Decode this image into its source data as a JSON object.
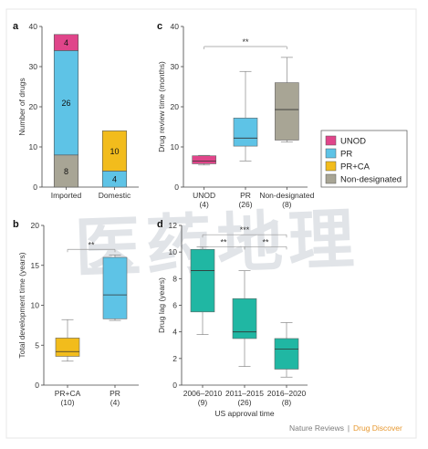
{
  "colors": {
    "unod": "#e0458a",
    "pr": "#5ec3e6",
    "prca": "#f2bc1c",
    "nondes": "#a8a595",
    "teal": "#20b7a3",
    "axis": "#444444",
    "frame": "#e7e7e7",
    "sig": "#999999",
    "watermark": "#c9cdd6",
    "publisher_gray": "#7d7d7d",
    "publisher_orange": "#e7982f"
  },
  "watermark": "医药地理",
  "footer": {
    "publisher": "Nature Reviews",
    "separator": "|",
    "journal": "Drug Discover"
  },
  "legend": {
    "items": [
      {
        "label": "UNOD",
        "color_key": "unod"
      },
      {
        "label": "PR",
        "color_key": "pr"
      },
      {
        "label": "PR+CA",
        "color_key": "prca"
      },
      {
        "label": "Non-designated",
        "color_key": "nondes"
      }
    ]
  },
  "chart_data": [
    {
      "panel": "a",
      "type": "bar",
      "stacked": true,
      "ylabel": "Number of drugs",
      "ylim": [
        0,
        40
      ],
      "yticks": [
        0,
        10,
        20,
        30,
        40
      ],
      "categories": [
        "Imported",
        "Domestic"
      ],
      "series": [
        {
          "name": "Non-designated",
          "color_key": "nondes",
          "values": [
            8,
            0
          ],
          "labels": [
            "8",
            ""
          ]
        },
        {
          "name": "PR",
          "color_key": "pr",
          "values": [
            26,
            4
          ],
          "labels": [
            "26",
            "4"
          ]
        },
        {
          "name": "UNOD",
          "color_key": "unod",
          "values": [
            4,
            0
          ],
          "labels": [
            "4",
            ""
          ]
        },
        {
          "name": "PR+CA",
          "color_key": "prca",
          "values": [
            0,
            10
          ],
          "labels": [
            "",
            "10"
          ]
        }
      ]
    },
    {
      "panel": "b",
      "type": "box",
      "ylabel": "Total development time (years)",
      "ylim": [
        0,
        20
      ],
      "yticks": [
        0,
        5,
        10,
        15,
        20
      ],
      "categories": [
        "PR+CA",
        "PR"
      ],
      "category_counts": [
        "(10)",
        "(4)"
      ],
      "boxes": [
        {
          "color_key": "prca",
          "min": 3.0,
          "q1": 3.6,
          "median": 4.2,
          "q3": 5.9,
          "max": 8.2
        },
        {
          "color_key": "pr",
          "min": 8.1,
          "q1": 8.3,
          "median": 11.3,
          "q3": 16.0,
          "max": 16.3
        }
      ],
      "significance": [
        {
          "from": 0,
          "to": 1,
          "level": 17,
          "label": "**"
        }
      ]
    },
    {
      "panel": "c",
      "type": "box",
      "ylabel": "Drug review time (months)",
      "ylim": [
        0,
        40
      ],
      "yticks": [
        0,
        10,
        20,
        30,
        40
      ],
      "categories": [
        "UNOD",
        "PR",
        "Non-designated"
      ],
      "category_counts": [
        "(4)",
        "(26)",
        "(8)"
      ],
      "boxes": [
        {
          "color_key": "unod",
          "min": 5.5,
          "q1": 5.8,
          "median": 6.5,
          "q3": 7.8,
          "max": 7.9
        },
        {
          "color_key": "pr",
          "min": 6.5,
          "q1": 10.2,
          "median": 12.2,
          "q3": 17.2,
          "max": 28.8
        },
        {
          "color_key": "nondes",
          "min": 11.2,
          "q1": 11.7,
          "median": 19.3,
          "q3": 26.0,
          "max": 32.3
        }
      ],
      "significance": [
        {
          "from": 0,
          "to": 2,
          "level": 35,
          "label": "**"
        }
      ]
    },
    {
      "panel": "d",
      "type": "box",
      "xlabel": "US approval time",
      "ylabel": "Drug lag (years)",
      "ylim": [
        0,
        12
      ],
      "yticks": [
        0,
        2,
        4,
        6,
        8,
        10,
        12
      ],
      "categories": [
        "2006–2010",
        "2011–2015",
        "2016–2020"
      ],
      "category_counts": [
        "(9)",
        "(26)",
        "(8)"
      ],
      "boxes": [
        {
          "color_key": "teal",
          "min": 3.8,
          "q1": 5.5,
          "median": 8.6,
          "q3": 10.2,
          "max": 10.4
        },
        {
          "color_key": "teal",
          "min": 1.4,
          "q1": 3.5,
          "median": 4.0,
          "q3": 6.5,
          "max": 8.6
        },
        {
          "color_key": "teal",
          "min": 0.6,
          "q1": 1.2,
          "median": 2.7,
          "q3": 3.5,
          "max": 4.7
        }
      ],
      "significance": [
        {
          "from": 0,
          "to": 1,
          "level": 10.4,
          "label": "**"
        },
        {
          "from": 1,
          "to": 2,
          "level": 10.4,
          "label": "**"
        },
        {
          "from": 0,
          "to": 2,
          "level": 11.3,
          "label": "***"
        }
      ]
    }
  ]
}
